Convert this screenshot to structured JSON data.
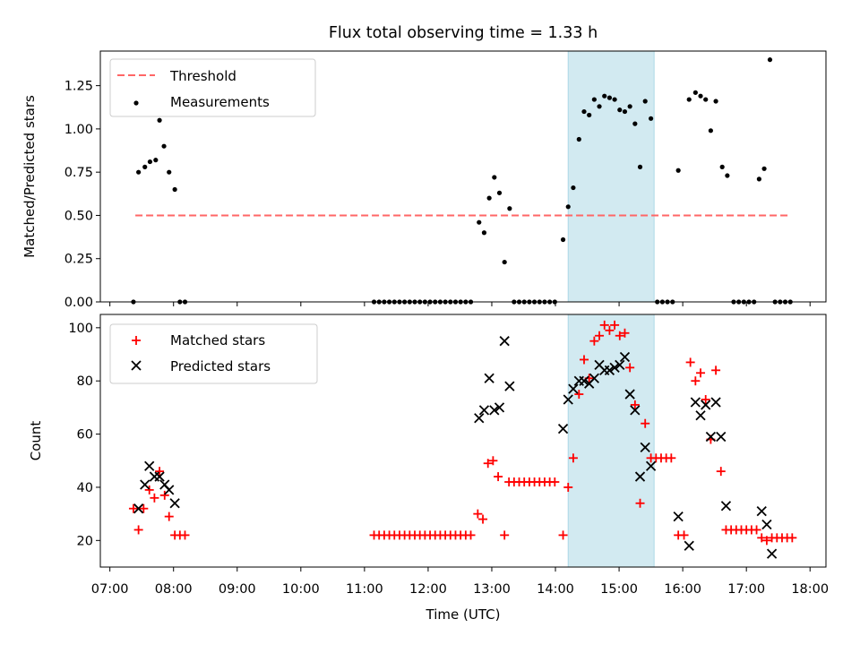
{
  "chart_data": [
    {
      "type": "scatter",
      "title": "Flux total observing time = 1.33 h",
      "xlabel": "",
      "ylabel": "Matched/Predicted stars",
      "ylim": [
        0,
        1.45
      ],
      "yticks": [
        "0.00",
        "0.25",
        "0.50",
        "0.75",
        "1.00",
        "1.25"
      ],
      "legend_position": "top-left",
      "highlight_band": {
        "x_start_h": 14.2,
        "x_end_h": 15.55,
        "color": "#add8e6"
      },
      "threshold": {
        "name": "Threshold",
        "value": 0.5,
        "x_start_h": 7.4,
        "x_end_h": 17.7,
        "color": "#ff6666"
      },
      "series": [
        {
          "name": "Measurements",
          "color": "#000000",
          "marker": "dot",
          "points": [
            [
              7.37,
              0.0
            ],
            [
              7.45,
              0.75
            ],
            [
              7.55,
              0.78
            ],
            [
              7.63,
              0.81
            ],
            [
              7.72,
              0.82
            ],
            [
              7.78,
              1.05
            ],
            [
              7.85,
              0.9
            ],
            [
              7.93,
              0.75
            ],
            [
              8.02,
              0.65
            ],
            [
              8.1,
              0.0
            ],
            [
              8.18,
              0.0
            ],
            [
              11.15,
              0.0
            ],
            [
              11.23,
              0.0
            ],
            [
              11.31,
              0.0
            ],
            [
              11.39,
              0.0
            ],
            [
              11.47,
              0.0
            ],
            [
              11.55,
              0.0
            ],
            [
              11.63,
              0.0
            ],
            [
              11.71,
              0.0
            ],
            [
              11.79,
              0.0
            ],
            [
              11.87,
              0.0
            ],
            [
              11.95,
              0.0
            ],
            [
              12.03,
              0.0
            ],
            [
              12.11,
              0.0
            ],
            [
              12.19,
              0.0
            ],
            [
              12.27,
              0.0
            ],
            [
              12.35,
              0.0
            ],
            [
              12.43,
              0.0
            ],
            [
              12.51,
              0.0
            ],
            [
              12.59,
              0.0
            ],
            [
              12.67,
              0.0
            ],
            [
              12.8,
              0.46
            ],
            [
              12.88,
              0.4
            ],
            [
              12.96,
              0.6
            ],
            [
              13.04,
              0.72
            ],
            [
              13.12,
              0.63
            ],
            [
              13.2,
              0.23
            ],
            [
              13.28,
              0.54
            ],
            [
              13.35,
              0.0
            ],
            [
              13.43,
              0.0
            ],
            [
              13.51,
              0.0
            ],
            [
              13.59,
              0.0
            ],
            [
              13.67,
              0.0
            ],
            [
              13.75,
              0.0
            ],
            [
              13.83,
              0.0
            ],
            [
              13.91,
              0.0
            ],
            [
              13.99,
              0.0
            ],
            [
              14.12,
              0.36
            ],
            [
              14.2,
              0.55
            ],
            [
              14.28,
              0.66
            ],
            [
              14.37,
              0.94
            ],
            [
              14.45,
              1.1
            ],
            [
              14.53,
              1.08
            ],
            [
              14.61,
              1.17
            ],
            [
              14.69,
              1.13
            ],
            [
              14.77,
              1.19
            ],
            [
              14.85,
              1.18
            ],
            [
              14.93,
              1.17
            ],
            [
              15.01,
              1.11
            ],
            [
              15.09,
              1.1
            ],
            [
              15.17,
              1.13
            ],
            [
              15.25,
              1.03
            ],
            [
              15.33,
              0.78
            ],
            [
              15.41,
              1.16
            ],
            [
              15.5,
              1.06
            ],
            [
              15.6,
              0.0
            ],
            [
              15.68,
              0.0
            ],
            [
              15.76,
              0.0
            ],
            [
              15.84,
              0.0
            ],
            [
              15.93,
              0.76
            ],
            [
              16.1,
              1.17
            ],
            [
              16.2,
              1.21
            ],
            [
              16.28,
              1.19
            ],
            [
              16.36,
              1.17
            ],
            [
              16.44,
              0.99
            ],
            [
              16.52,
              1.16
            ],
            [
              16.62,
              0.78
            ],
            [
              16.7,
              0.73
            ],
            [
              16.8,
              0.0
            ],
            [
              16.88,
              0.0
            ],
            [
              16.96,
              0.0
            ],
            [
              17.04,
              0.0
            ],
            [
              17.12,
              0.0
            ],
            [
              17.2,
              0.71
            ],
            [
              17.28,
              0.77
            ],
            [
              17.37,
              1.4
            ],
            [
              17.45,
              0.0
            ],
            [
              17.53,
              0.0
            ],
            [
              17.61,
              0.0
            ],
            [
              17.69,
              0.0
            ]
          ]
        }
      ]
    },
    {
      "type": "scatter",
      "title": "",
      "xlabel": "Time (UTC)",
      "ylabel": "Count",
      "ylim": [
        10,
        105
      ],
      "yticks": [
        "20",
        "40",
        "60",
        "80",
        "100"
      ],
      "xlim_h": [
        6.85,
        18.25
      ],
      "xticks": [
        "07:00",
        "08:00",
        "09:00",
        "10:00",
        "11:00",
        "12:00",
        "13:00",
        "14:00",
        "15:00",
        "16:00",
        "17:00",
        "18:00"
      ],
      "legend_position": "top-left",
      "highlight_band": {
        "x_start_h": 14.2,
        "x_end_h": 15.55,
        "color": "#add8e6"
      },
      "series": [
        {
          "name": "Matched stars",
          "color": "#ff0000",
          "marker": "plus",
          "points": [
            [
              7.37,
              32
            ],
            [
              7.45,
              24
            ],
            [
              7.53,
              32
            ],
            [
              7.62,
              39
            ],
            [
              7.7,
              36
            ],
            [
              7.78,
              46
            ],
            [
              7.86,
              37
            ],
            [
              7.93,
              29
            ],
            [
              8.02,
              22
            ],
            [
              8.1,
              22
            ],
            [
              8.18,
              22
            ],
            [
              11.15,
              22
            ],
            [
              11.23,
              22
            ],
            [
              11.31,
              22
            ],
            [
              11.39,
              22
            ],
            [
              11.47,
              22
            ],
            [
              11.55,
              22
            ],
            [
              11.63,
              22
            ],
            [
              11.71,
              22
            ],
            [
              11.79,
              22
            ],
            [
              11.87,
              22
            ],
            [
              11.95,
              22
            ],
            [
              12.03,
              22
            ],
            [
              12.11,
              22
            ],
            [
              12.19,
              22
            ],
            [
              12.27,
              22
            ],
            [
              12.35,
              22
            ],
            [
              12.43,
              22
            ],
            [
              12.51,
              22
            ],
            [
              12.59,
              22
            ],
            [
              12.67,
              22
            ],
            [
              12.78,
              30
            ],
            [
              12.86,
              28
            ],
            [
              12.94,
              49
            ],
            [
              13.02,
              50
            ],
            [
              13.1,
              44
            ],
            [
              13.2,
              22
            ],
            [
              13.27,
              42
            ],
            [
              13.35,
              42
            ],
            [
              13.43,
              42
            ],
            [
              13.51,
              42
            ],
            [
              13.59,
              42
            ],
            [
              13.67,
              42
            ],
            [
              13.75,
              42
            ],
            [
              13.83,
              42
            ],
            [
              13.91,
              42
            ],
            [
              13.99,
              42
            ],
            [
              14.12,
              22
            ],
            [
              14.2,
              40
            ],
            [
              14.28,
              51
            ],
            [
              14.37,
              75
            ],
            [
              14.45,
              88
            ],
            [
              14.53,
              81
            ],
            [
              14.61,
              95
            ],
            [
              14.69,
              97
            ],
            [
              14.77,
              101
            ],
            [
              14.85,
              99
            ],
            [
              14.93,
              101
            ],
            [
              15.01,
              97
            ],
            [
              15.09,
              98
            ],
            [
              15.17,
              85
            ],
            [
              15.25,
              71
            ],
            [
              15.33,
              34
            ],
            [
              15.41,
              64
            ],
            [
              15.5,
              51
            ],
            [
              15.58,
              51
            ],
            [
              15.66,
              51
            ],
            [
              15.74,
              51
            ],
            [
              15.82,
              51
            ],
            [
              15.93,
              22
            ],
            [
              16.02,
              22
            ],
            [
              16.12,
              87
            ],
            [
              16.2,
              80
            ],
            [
              16.28,
              83
            ],
            [
              16.36,
              73
            ],
            [
              16.44,
              58
            ],
            [
              16.52,
              84
            ],
            [
              16.6,
              46
            ],
            [
              16.68,
              24
            ],
            [
              16.76,
              24
            ],
            [
              16.84,
              24
            ],
            [
              16.92,
              24
            ],
            [
              17.0,
              24
            ],
            [
              17.08,
              24
            ],
            [
              17.16,
              24
            ],
            [
              17.24,
              21
            ],
            [
              17.32,
              20
            ],
            [
              17.4,
              21
            ],
            [
              17.48,
              21
            ],
            [
              17.56,
              21
            ],
            [
              17.64,
              21
            ],
            [
              17.72,
              21
            ]
          ]
        },
        {
          "name": "Predicted stars",
          "color": "#000000",
          "marker": "x",
          "points": [
            [
              7.45,
              32
            ],
            [
              7.55,
              41
            ],
            [
              7.62,
              48
            ],
            [
              7.7,
              44
            ],
            [
              7.78,
              44
            ],
            [
              7.86,
              41
            ],
            [
              7.93,
              39
            ],
            [
              8.02,
              34
            ],
            [
              12.8,
              66
            ],
            [
              12.88,
              69
            ],
            [
              12.96,
              81
            ],
            [
              13.04,
              69
            ],
            [
              13.12,
              70
            ],
            [
              13.2,
              95
            ],
            [
              13.28,
              78
            ],
            [
              14.12,
              62
            ],
            [
              14.2,
              73
            ],
            [
              14.28,
              77
            ],
            [
              14.37,
              80
            ],
            [
              14.45,
              80
            ],
            [
              14.53,
              79
            ],
            [
              14.61,
              81
            ],
            [
              14.69,
              86
            ],
            [
              14.77,
              84
            ],
            [
              14.85,
              84
            ],
            [
              14.93,
              85
            ],
            [
              15.01,
              86
            ],
            [
              15.09,
              89
            ],
            [
              15.17,
              75
            ],
            [
              15.25,
              69
            ],
            [
              15.33,
              44
            ],
            [
              15.41,
              55
            ],
            [
              15.5,
              48
            ],
            [
              15.93,
              29
            ],
            [
              16.1,
              18
            ],
            [
              16.2,
              72
            ],
            [
              16.28,
              67
            ],
            [
              16.36,
              71
            ],
            [
              16.44,
              59
            ],
            [
              16.52,
              72
            ],
            [
              16.6,
              59
            ],
            [
              16.68,
              33
            ],
            [
              17.24,
              31
            ],
            [
              17.32,
              26
            ],
            [
              17.4,
              15
            ]
          ]
        }
      ]
    }
  ]
}
